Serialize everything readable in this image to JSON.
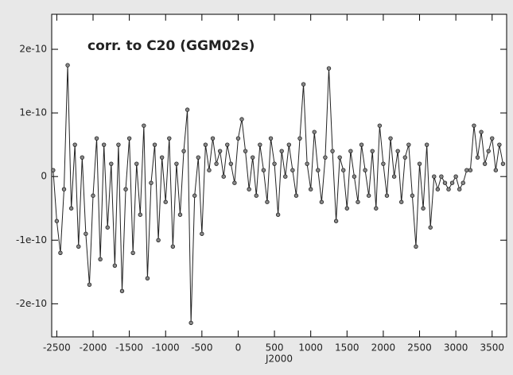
{
  "chart_data": {
    "type": "line",
    "title": "corr. to C20 (GGM02s)",
    "x_label": "J2000",
    "x": [
      -2550,
      -2500,
      -2450,
      -2400,
      -2350,
      -2300,
      -2250,
      -2200,
      -2150,
      -2100,
      -2050,
      -2000,
      -1950,
      -1900,
      -1850,
      -1800,
      -1750,
      -1700,
      -1650,
      -1600,
      -1550,
      -1500,
      -1450,
      -1400,
      -1350,
      -1300,
      -1250,
      -1200,
      -1150,
      -1100,
      -1050,
      -1000,
      -950,
      -900,
      -850,
      -800,
      -750,
      -700,
      -650,
      -600,
      -550,
      -500,
      -450,
      -400,
      -350,
      -300,
      -250,
      -200,
      -150,
      -100,
      -50,
      0,
      50,
      100,
      150,
      200,
      250,
      300,
      350,
      400,
      450,
      500,
      550,
      600,
      650,
      700,
      750,
      800,
      850,
      900,
      950,
      1000,
      1050,
      1100,
      1150,
      1200,
      1250,
      1300,
      1350,
      1400,
      1450,
      1500,
      1550,
      1600,
      1650,
      1700,
      1750,
      1800,
      1850,
      1900,
      1950,
      2000,
      2050,
      2100,
      2150,
      2200,
      2250,
      2300,
      2350,
      2400,
      2450,
      2500,
      2550,
      2600,
      2650,
      2700,
      2750,
      2800,
      2850,
      2900,
      2950,
      3000,
      3050,
      3100,
      3150,
      3200,
      3250,
      3300,
      3350,
      3400,
      3450,
      3500,
      3550,
      3600,
      3650
    ],
    "series": [
      {
        "color": "#222222",
        "marker_color": "#888888",
        "values": [
          1e-11,
          -7e-11,
          -1.2e-10,
          -2e-11,
          1.75e-10,
          -5e-11,
          5e-11,
          -1.1e-10,
          3e-11,
          -9e-11,
          -1.7e-10,
          -3e-11,
          6e-11,
          -1.3e-10,
          5e-11,
          -8e-11,
          2e-11,
          -1.4e-10,
          5e-11,
          -1.8e-10,
          -2e-11,
          6e-11,
          -1.2e-10,
          2e-11,
          -6e-11,
          8e-11,
          -1.6e-10,
          -1e-11,
          5e-11,
          -1e-10,
          3e-11,
          -4e-11,
          6e-11,
          -1.1e-10,
          2e-11,
          -6e-11,
          4e-11,
          1.05e-10,
          -2.3e-10,
          -3e-11,
          3e-11,
          -9e-11,
          5e-11,
          1e-11,
          6e-11,
          2e-11,
          4e-11,
          0,
          5e-11,
          2e-11,
          -1e-11,
          6e-11,
          9e-11,
          4e-11,
          -2e-11,
          3e-11,
          -3e-11,
          5e-11,
          1e-11,
          -4e-11,
          6e-11,
          2e-11,
          -6e-11,
          4e-11,
          0,
          5e-11,
          1e-11,
          -3e-11,
          6e-11,
          1.45e-10,
          2e-11,
          -2e-11,
          7e-11,
          1e-11,
          -4e-11,
          3e-11,
          1.7e-10,
          4e-11,
          -7e-11,
          3e-11,
          1e-11,
          -5e-11,
          4e-11,
          0,
          -4e-11,
          5e-11,
          1e-11,
          -3e-11,
          4e-11,
          -5e-11,
          8e-11,
          2e-11,
          -3e-11,
          6e-11,
          0,
          4e-11,
          -4e-11,
          3e-11,
          5e-11,
          -3e-11,
          -1.1e-10,
          2e-11,
          -5e-11,
          5e-11,
          -8e-11,
          0,
          -2e-11,
          0,
          -1e-11,
          -2e-11,
          -1e-11,
          0,
          -2e-11,
          -1e-11,
          1e-11,
          1e-11,
          8e-11,
          3e-11,
          7e-11,
          2e-11,
          4e-11,
          6e-11,
          1e-11,
          5e-11,
          2e-11
        ]
      }
    ],
    "xlim": [
      -2570,
      3700
    ],
    "xticks": [
      -2500,
      -2000,
      -1500,
      -1000,
      -500,
      0,
      500,
      1000,
      1500,
      2000,
      2500,
      3000,
      3500
    ],
    "ylim": [
      -2.52e-10,
      2.55e-10
    ],
    "yticks": [
      -2e-10,
      -1e-10,
      0,
      1e-10,
      2e-10
    ]
  }
}
